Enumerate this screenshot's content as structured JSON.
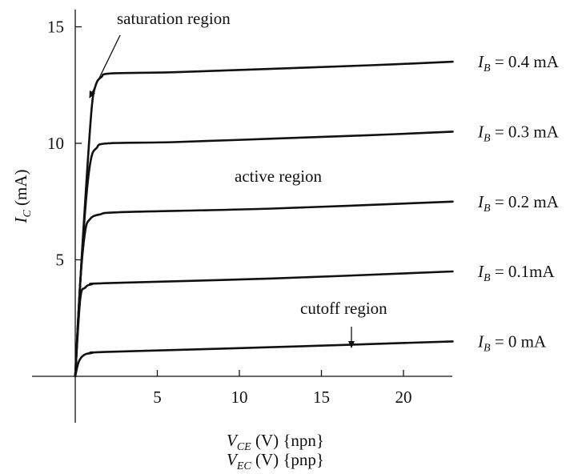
{
  "chart_data": {
    "type": "line",
    "title": "",
    "xlabel": "V_CE (V) {npn}",
    "xlabel_lines": [
      {
        "sym": "V",
        "sub": "CE",
        "rest": " (V) {npn}"
      },
      {
        "sym": "V",
        "sub": "EC",
        "rest": " (V) {pnp}"
      }
    ],
    "ylabel": {
      "sym": "I",
      "sub": "C",
      "rest": " (mA)"
    },
    "xlim": [
      0,
      25
    ],
    "ylim": [
      0,
      16
    ],
    "x_ticks": [
      5,
      10,
      15,
      20
    ],
    "y_ticks": [
      5,
      10,
      15
    ],
    "grid": false,
    "series": [
      {
        "name": "I_B = 0.4 mA",
        "label": {
          "sym": "I",
          "sub": "B",
          "rest": " = 0.4 mA"
        },
        "points": [
          [
            0,
            0
          ],
          [
            0.3,
            4.0
          ],
          [
            0.65,
            8.0
          ],
          [
            1.0,
            11.5
          ],
          [
            1.25,
            12.5
          ],
          [
            1.6,
            12.85
          ],
          [
            2.2,
            13.0
          ],
          [
            6,
            13.05
          ],
          [
            12,
            13.2
          ],
          [
            18,
            13.35
          ],
          [
            23,
            13.5
          ]
        ]
      },
      {
        "name": "I_B = 0.3 mA",
        "label": {
          "sym": "I",
          "sub": "B",
          "rest": " = 0.3 mA"
        },
        "points": [
          [
            0,
            0
          ],
          [
            0.3,
            4.0
          ],
          [
            0.65,
            7.5
          ],
          [
            0.95,
            9.3
          ],
          [
            1.3,
            9.8
          ],
          [
            2.0,
            10.0
          ],
          [
            6,
            10.05
          ],
          [
            12,
            10.2
          ],
          [
            18,
            10.35
          ],
          [
            23,
            10.5
          ]
        ]
      },
      {
        "name": "I_B = 0.2 mA",
        "label": {
          "sym": "I",
          "sub": "B",
          "rest": " = 0.2 mA"
        },
        "points": [
          [
            0,
            0
          ],
          [
            0.3,
            4.0
          ],
          [
            0.6,
            6.2
          ],
          [
            0.9,
            6.75
          ],
          [
            1.5,
            6.95
          ],
          [
            3.0,
            7.05
          ],
          [
            12,
            7.2
          ],
          [
            23,
            7.5
          ]
        ]
      },
      {
        "name": "I_B = 0.1mA",
        "label": {
          "sym": "I",
          "sub": "B",
          "rest": " = 0.1mA"
        },
        "points": [
          [
            0,
            0
          ],
          [
            0.3,
            3.3
          ],
          [
            0.6,
            3.8
          ],
          [
            1.0,
            3.95
          ],
          [
            2.0,
            4.0
          ],
          [
            12,
            4.2
          ],
          [
            23,
            4.5
          ]
        ]
      },
      {
        "name": "I_B = 0 mA",
        "label": {
          "sym": "I",
          "sub": "B",
          "rest": " = 0 mA"
        },
        "points": [
          [
            0,
            0
          ],
          [
            0.2,
            0.6
          ],
          [
            0.5,
            0.9
          ],
          [
            1.0,
            1.0
          ],
          [
            2.0,
            1.05
          ],
          [
            12,
            1.25
          ],
          [
            23,
            1.5
          ]
        ]
      }
    ],
    "annotations": [
      {
        "text": "saturation region",
        "arrow_to": [
          1.3,
          12.2
        ]
      },
      {
        "text": "active region"
      },
      {
        "text": "cutoff region",
        "arrow_to": [
          17,
          0.8
        ]
      }
    ]
  }
}
